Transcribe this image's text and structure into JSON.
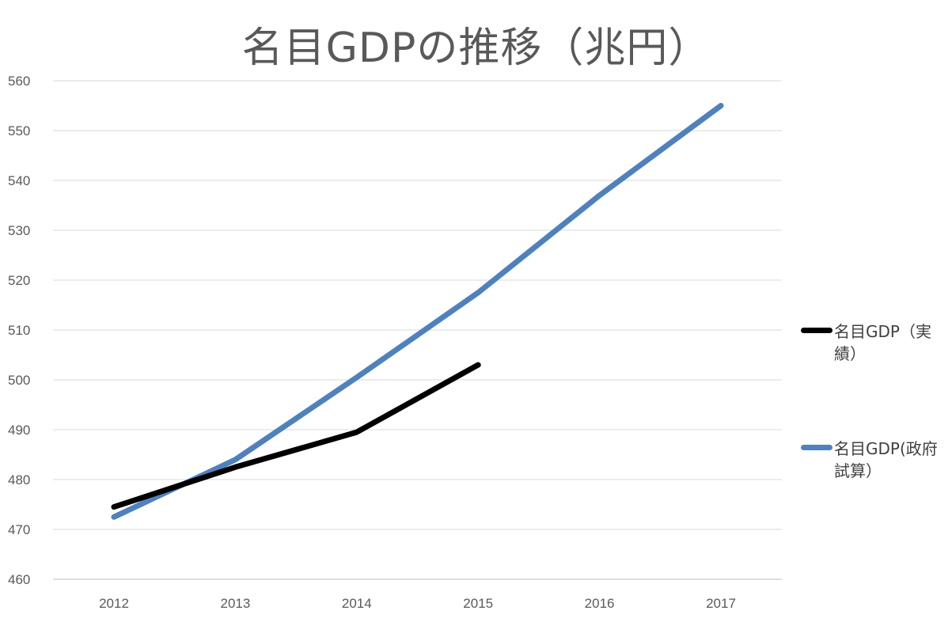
{
  "chart_data": {
    "type": "line",
    "title": "名目GDPの推移（兆円）",
    "categories": [
      "2012",
      "2013",
      "2014",
      "2015",
      "2016",
      "2017"
    ],
    "ylim": [
      460,
      560
    ],
    "yticks": [
      460,
      470,
      480,
      490,
      500,
      510,
      520,
      530,
      540,
      550,
      560
    ],
    "grid": true,
    "legend_position": "right",
    "series": [
      {
        "name": "名目GDP（実績）",
        "color": "#000000",
        "values": [
          474.5,
          482.5,
          489.5,
          503.0,
          null,
          null
        ]
      },
      {
        "name": "名目GDP(政府試算）",
        "color": "#4f81bd",
        "values": [
          472.5,
          484.0,
          500.5,
          517.5,
          537.0,
          555.0
        ]
      }
    ]
  }
}
